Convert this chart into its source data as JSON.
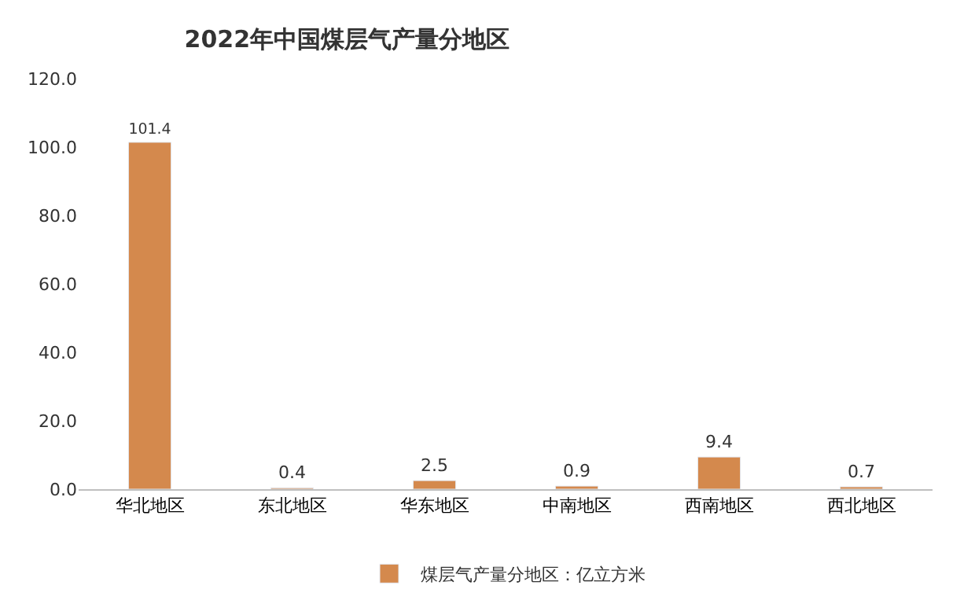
{
  "chart_data": {
    "type": "bar",
    "title": "2022年中国煤层气产量分地区",
    "categories": [
      "华北地区",
      "东北地区",
      "华东地区",
      "中南地区",
      "西南地区",
      "西北地区"
    ],
    "series": [
      {
        "name": "煤层气产量分地区：亿立方米",
        "color": "#d4894d",
        "values": [
          101.4,
          0.4,
          2.5,
          0.9,
          9.4,
          0.7
        ]
      }
    ],
    "ylim": [
      0,
      120
    ],
    "yticks": [
      {
        "value": 0,
        "label": "0.0"
      },
      {
        "value": 20,
        "label": "20.0"
      },
      {
        "value": 40,
        "label": "40.0"
      },
      {
        "value": 60,
        "label": "60.0"
      },
      {
        "value": 80,
        "label": "80.0"
      },
      {
        "value": 100,
        "label": "100.0"
      },
      {
        "value": 120,
        "label": "120.0"
      }
    ],
    "data_labels": true,
    "legend": "bottom",
    "grid": false
  }
}
